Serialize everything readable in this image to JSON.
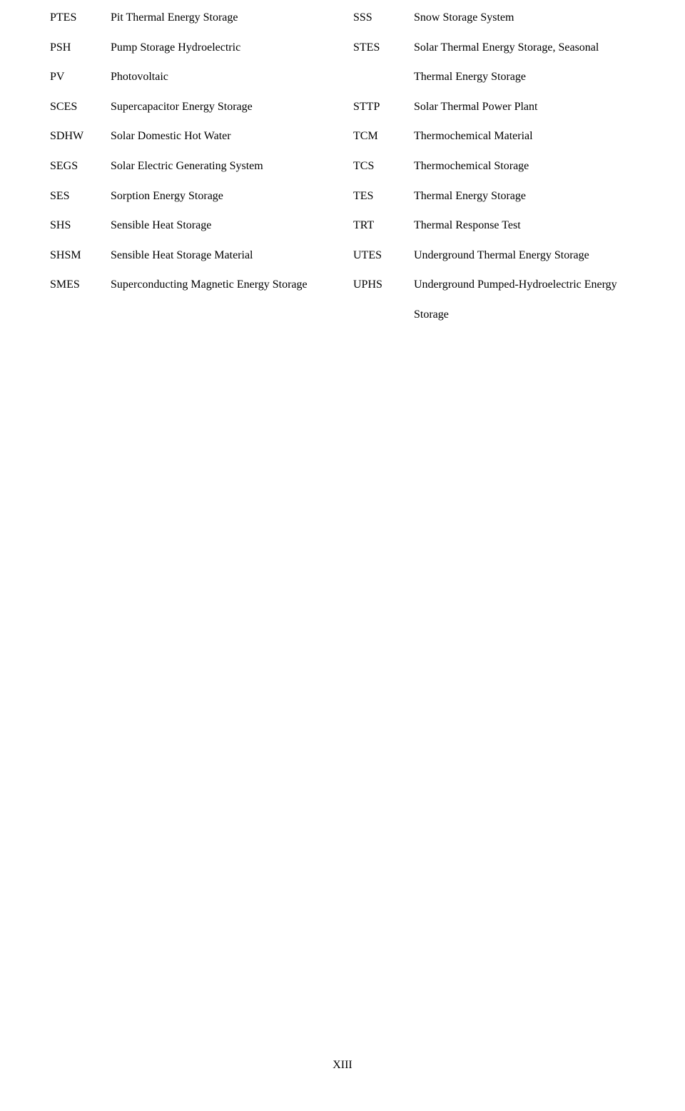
{
  "left_column": [
    {
      "abbr": "PTES",
      "def": "Pit Thermal Energy Storage"
    },
    {
      "abbr": "PSH",
      "def": "Pump Storage Hydroelectric"
    },
    {
      "abbr": "PV",
      "def": "Photovoltaic"
    },
    {
      "abbr": "SCES",
      "def": "Supercapacitor Energy Storage"
    },
    {
      "abbr": "SDHW",
      "def": "Solar Domestic Hot Water"
    },
    {
      "abbr": "SEGS",
      "def": "Solar Electric Generating System"
    },
    {
      "abbr": "SES",
      "def": "Sorption Energy Storage"
    },
    {
      "abbr": "SHS",
      "def": "Sensible Heat Storage"
    },
    {
      "abbr": "SHSM",
      "def": "Sensible Heat Storage Material"
    },
    {
      "abbr": "SMES",
      "def": "Superconducting Magnetic Energy Storage"
    }
  ],
  "right_column": [
    {
      "abbr": "SSS",
      "def": "Snow Storage System"
    },
    {
      "abbr": "STES",
      "def": "Solar Thermal Energy Storage, Seasonal Thermal Energy Storage"
    },
    {
      "abbr": "STTP",
      "def": "Solar Thermal Power Plant"
    },
    {
      "abbr": "TCM",
      "def": "Thermochemical Material"
    },
    {
      "abbr": "TCS",
      "def": "Thermochemical Storage"
    },
    {
      "abbr": "TES",
      "def": "Thermal Energy Storage"
    },
    {
      "abbr": "TRT",
      "def": "Thermal Response Test"
    },
    {
      "abbr": "UTES",
      "def": "Underground Thermal Energy Storage"
    },
    {
      "abbr": "UPHS",
      "def": "Underground Pumped-Hydroelectric Energy Storage"
    }
  ],
  "page_number": "XIII"
}
